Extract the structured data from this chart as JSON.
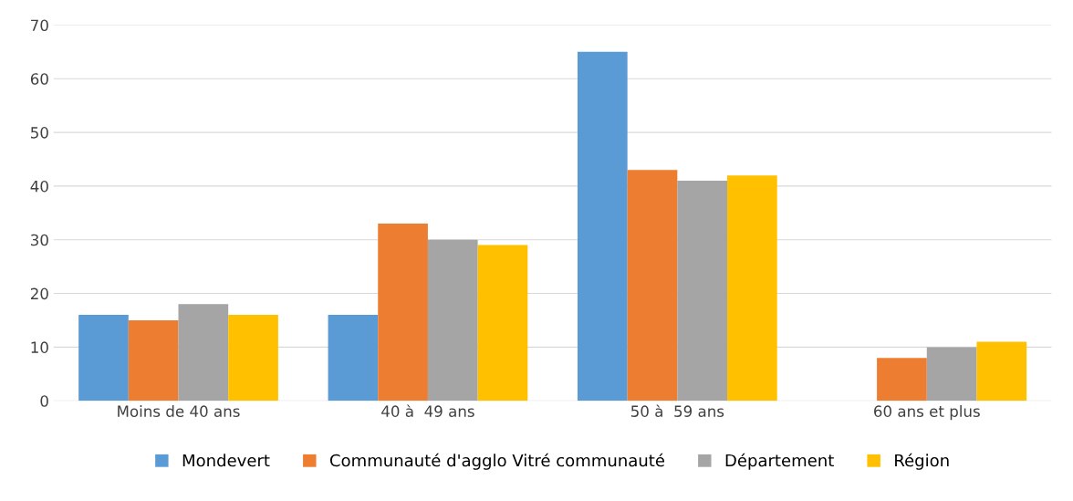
{
  "chart_data": {
    "type": "bar",
    "categories": [
      "Moins de 40 ans",
      "40 à  49 ans",
      "50 à  59 ans",
      "60 ans et plus"
    ],
    "series": [
      {
        "name": "Mondevert",
        "color": "#5b9bd5",
        "values": [
          16,
          16,
          65,
          0
        ]
      },
      {
        "name": "Communauté d'agglo Vitré communauté",
        "color": "#ed7d31",
        "values": [
          15,
          33,
          43,
          8
        ]
      },
      {
        "name": "Département",
        "color": "#a5a5a5",
        "values": [
          18,
          30,
          41,
          10
        ]
      },
      {
        "name": "Région",
        "color": "#ffc000",
        "values": [
          16,
          29,
          42,
          11
        ]
      }
    ],
    "ylim": [
      0,
      70
    ],
    "yticks": [
      0,
      10,
      20,
      30,
      40,
      50,
      60,
      70
    ],
    "grid": "y",
    "legend": "bottom"
  }
}
